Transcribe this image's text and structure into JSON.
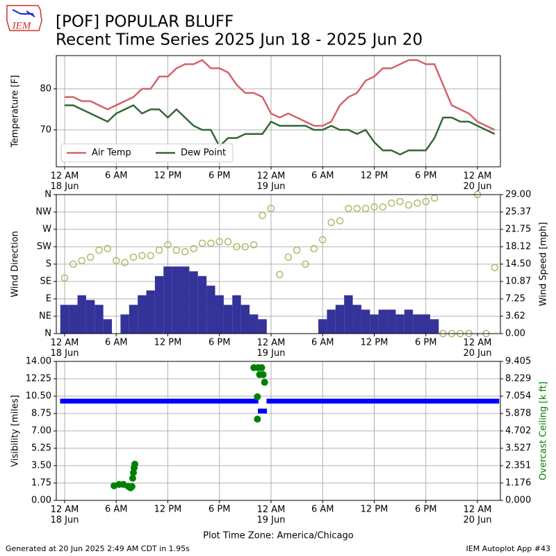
{
  "header": {
    "logo": "IEM",
    "title": "[POF] POPULAR BLUFF",
    "subtitle": "Recent Time Series 2025 Jun 18 - 2025 Jun 20"
  },
  "footer": {
    "left": "Generated at 20 Jun 2025 2:49 AM CDT in 1.95s",
    "right": "IEM Autoplot App #43"
  },
  "chart_data": [
    {
      "type": "combo",
      "ylabel": "Temperature [F]",
      "grid": true,
      "legend": "lower left",
      "xlim": [
        "2025-06-17T23:02",
        "2025-06-20T02:40"
      ],
      "xticks": [
        {
          "value": "2025-06-18T00:00",
          "label": "12 AM\n18 Jun"
        },
        {
          "value": "2025-06-18T06:00",
          "label": "6 AM"
        },
        {
          "value": "2025-06-18T12:00",
          "label": "12 PM"
        },
        {
          "value": "2025-06-18T18:00",
          "label": "6 PM"
        },
        {
          "value": "2025-06-19T00:00",
          "label": "12 AM\n19 Jun"
        },
        {
          "value": "2025-06-19T06:00",
          "label": "6 AM"
        },
        {
          "value": "2025-06-19T12:00",
          "label": "12 PM"
        },
        {
          "value": "2025-06-19T18:00",
          "label": "6 PM"
        },
        {
          "value": "2025-06-20T00:00",
          "label": "12 AM\n20 Jun"
        }
      ],
      "ylim": [
        61,
        88.1
      ],
      "yticks": [
        70,
        80
      ],
      "x": [
        "2025-06-18T00:00",
        "2025-06-18T01:00",
        "2025-06-18T02:00",
        "2025-06-18T03:00",
        "2025-06-18T04:00",
        "2025-06-18T05:00",
        "2025-06-18T06:00",
        "2025-06-18T07:00",
        "2025-06-18T08:00",
        "2025-06-18T09:00",
        "2025-06-18T10:00",
        "2025-06-18T11:00",
        "2025-06-18T12:00",
        "2025-06-18T13:00",
        "2025-06-18T14:00",
        "2025-06-18T15:00",
        "2025-06-18T16:00",
        "2025-06-18T17:00",
        "2025-06-18T18:00",
        "2025-06-18T19:00",
        "2025-06-18T20:00",
        "2025-06-18T21:00",
        "2025-06-18T22:00",
        "2025-06-18T23:00",
        "2025-06-19T00:00",
        "2025-06-19T01:00",
        "2025-06-19T02:00",
        "2025-06-19T03:00",
        "2025-06-19T04:00",
        "2025-06-19T05:00",
        "2025-06-19T06:00",
        "2025-06-19T07:00",
        "2025-06-19T08:00",
        "2025-06-19T09:00",
        "2025-06-19T10:00",
        "2025-06-19T11:00",
        "2025-06-19T12:00",
        "2025-06-19T13:00",
        "2025-06-19T14:00",
        "2025-06-19T15:00",
        "2025-06-19T16:00",
        "2025-06-19T17:00",
        "2025-06-19T18:00",
        "2025-06-19T19:00",
        "2025-06-19T20:00",
        "2025-06-19T21:00",
        "2025-06-19T22:00",
        "2025-06-19T23:00",
        "2025-06-20T00:00",
        "2025-06-20T01:00",
        "2025-06-20T02:00"
      ],
      "series": [
        {
          "name": "Air Temp",
          "color": "#d6616b",
          "kind": "line",
          "values": [
            78,
            78,
            77,
            77,
            76,
            75,
            76,
            77,
            78,
            80,
            80,
            83,
            83,
            85,
            86,
            86,
            87,
            85,
            85,
            84,
            81,
            79,
            79,
            78,
            74,
            73,
            74,
            73,
            72,
            71,
            71,
            72,
            76,
            78,
            79,
            82,
            83,
            85,
            85,
            86,
            87,
            87,
            86,
            86,
            81,
            76,
            75,
            74,
            72,
            71,
            70
          ]
        },
        {
          "name": "Dew Point",
          "color": "#336633",
          "kind": "line",
          "values": [
            76,
            76,
            75,
            74,
            73,
            72,
            74,
            75,
            76,
            74,
            75,
            75,
            73,
            75,
            73,
            71,
            70,
            70,
            66,
            68,
            68,
            69,
            69,
            69,
            72,
            71,
            71,
            71,
            71,
            70,
            70,
            71,
            70,
            70,
            69,
            70,
            67,
            65,
            65,
            64,
            65,
            65,
            65,
            68,
            73,
            73,
            72,
            72,
            71,
            70,
            69
          ]
        }
      ]
    },
    {
      "type": "combo",
      "ylabel": "Wind Direction",
      "y2label": "Wind Speed [mph]",
      "grid": true,
      "xlim": [
        "2025-06-17T23:02",
        "2025-06-20T02:40"
      ],
      "xticks": [
        {
          "value": "2025-06-18T00:00",
          "label": "12 AM\n18 Jun"
        },
        {
          "value": "2025-06-18T06:00",
          "label": "6 AM"
        },
        {
          "value": "2025-06-18T12:00",
          "label": "12 PM"
        },
        {
          "value": "2025-06-18T18:00",
          "label": "6 PM"
        },
        {
          "value": "2025-06-19T00:00",
          "label": "12 AM\n19 Jun"
        },
        {
          "value": "2025-06-19T06:00",
          "label": "6 AM"
        },
        {
          "value": "2025-06-19T12:00",
          "label": "12 PM"
        },
        {
          "value": "2025-06-19T18:00",
          "label": "6 PM"
        },
        {
          "value": "2025-06-20T00:00",
          "label": "12 AM\n20 Jun"
        }
      ],
      "ylim": [
        0,
        360
      ],
      "yticks": [
        {
          "value": 0,
          "label": "N"
        },
        {
          "value": 45,
          "label": "NE"
        },
        {
          "value": 90,
          "label": "E"
        },
        {
          "value": 135,
          "label": "SE"
        },
        {
          "value": 180,
          "label": "S"
        },
        {
          "value": 225,
          "label": "SW"
        },
        {
          "value": 270,
          "label": "W"
        },
        {
          "value": 315,
          "label": "NW"
        },
        {
          "value": 360,
          "label": "N"
        }
      ],
      "y2lim": [
        0,
        29
      ],
      "y2ticks": [
        {
          "value": 0,
          "label": "0.00"
        },
        {
          "value": 3.625,
          "label": "3.62"
        },
        {
          "value": 7.25,
          "label": "7.25"
        },
        {
          "value": 10.875,
          "label": "10.87"
        },
        {
          "value": 14.5,
          "label": "14.50"
        },
        {
          "value": 18.125,
          "label": "18.12"
        },
        {
          "value": 21.75,
          "label": "21.75"
        },
        {
          "value": 25.375,
          "label": "25.37"
        },
        {
          "value": 29,
          "label": "29.00"
        }
      ],
      "x": [
        "2025-06-18T00:00",
        "2025-06-18T01:00",
        "2025-06-18T02:00",
        "2025-06-18T03:00",
        "2025-06-18T04:00",
        "2025-06-18T05:00",
        "2025-06-18T06:00",
        "2025-06-18T07:00",
        "2025-06-18T08:00",
        "2025-06-18T09:00",
        "2025-06-18T10:00",
        "2025-06-18T11:00",
        "2025-06-18T12:00",
        "2025-06-18T13:00",
        "2025-06-18T14:00",
        "2025-06-18T15:00",
        "2025-06-18T16:00",
        "2025-06-18T17:00",
        "2025-06-18T18:00",
        "2025-06-18T19:00",
        "2025-06-18T20:00",
        "2025-06-18T21:00",
        "2025-06-18T22:00",
        "2025-06-18T23:00",
        "2025-06-19T00:00",
        "2025-06-19T01:00",
        "2025-06-19T02:00",
        "2025-06-19T03:00",
        "2025-06-19T04:00",
        "2025-06-19T05:00",
        "2025-06-19T06:00",
        "2025-06-19T07:00",
        "2025-06-19T08:00",
        "2025-06-19T09:00",
        "2025-06-19T10:00",
        "2025-06-19T11:00",
        "2025-06-19T12:00",
        "2025-06-19T13:00",
        "2025-06-19T14:00",
        "2025-06-19T15:00",
        "2025-06-19T16:00",
        "2025-06-19T17:00",
        "2025-06-19T18:00",
        "2025-06-19T19:00",
        "2025-06-19T20:00",
        "2025-06-19T21:00",
        "2025-06-19T22:00",
        "2025-06-19T23:00",
        "2025-06-20T00:00",
        "2025-06-20T01:00",
        "2025-06-20T02:00"
      ],
      "series": [
        {
          "color": "#333399",
          "kind": "bar",
          "axis": "y2",
          "values": [
            6,
            6,
            8,
            7,
            6,
            3,
            0,
            4,
            6,
            8,
            9,
            12,
            14,
            14,
            14,
            13,
            12,
            10,
            8,
            6,
            8,
            6,
            4,
            3,
            0,
            0,
            0,
            0,
            0,
            0,
            3,
            5,
            6,
            8,
            6,
            5,
            4,
            5,
            5,
            4,
            5,
            4,
            4,
            3,
            0,
            0,
            0,
            0,
            0,
            0,
            0
          ]
        },
        {
          "color": "#b5b56a",
          "kind": "hollow-circle",
          "values": [
            144,
            180,
            189,
            198,
            216,
            220,
            189,
            184,
            198,
            202,
            202,
            216,
            230,
            216,
            212,
            220,
            234,
            234,
            238,
            238,
            225,
            225,
            230,
            306,
            324,
            153,
            198,
            216,
            180,
            220,
            243,
            288,
            292,
            324,
            324,
            324,
            328,
            328,
            338,
            342,
            333,
            338,
            342,
            351,
            0,
            0,
            0,
            0,
            360,
            0,
            171
          ]
        }
      ]
    },
    {
      "type": "combo",
      "ylabel": "Visibility [miles]",
      "y2label": "Overcast Ceiling [k ft]",
      "y2label_color": "#008000",
      "xlabel": "Plot Time Zone: America/Chicago",
      "grid": true,
      "xlim": [
        "2025-06-17T23:02",
        "2025-06-20T02:40"
      ],
      "xticks": [
        {
          "value": "2025-06-18T00:00",
          "label": "12 AM\n18 Jun"
        },
        {
          "value": "2025-06-18T06:00",
          "label": "6 AM"
        },
        {
          "value": "2025-06-18T12:00",
          "label": "12 PM"
        },
        {
          "value": "2025-06-18T18:00",
          "label": "6 PM"
        },
        {
          "value": "2025-06-19T00:00",
          "label": "12 AM\n19 Jun"
        },
        {
          "value": "2025-06-19T06:00",
          "label": "6 AM"
        },
        {
          "value": "2025-06-19T12:00",
          "label": "12 PM"
        },
        {
          "value": "2025-06-19T18:00",
          "label": "6 PM"
        },
        {
          "value": "2025-06-20T00:00",
          "label": "12 AM\n20 Jun"
        }
      ],
      "ylim": [
        0,
        14
      ],
      "yticks": [
        {
          "value": 0,
          "label": "0.00"
        },
        1.75,
        {
          "value": 3.5,
          "label": "3.50"
        },
        5.25,
        {
          "value": 7,
          "label": "7.00"
        },
        8.75,
        {
          "value": 10.5,
          "label": "10.50"
        },
        12.25,
        {
          "value": 14,
          "label": "14.00"
        }
      ],
      "y2lim": [
        0,
        9.405
      ],
      "y2ticks": [
        {
          "value": 0,
          "label": "0.000"
        },
        {
          "value": 1.175625,
          "label": "1.176"
        },
        {
          "value": 2.35125,
          "label": "2.351"
        },
        {
          "value": 3.526875,
          "label": "3.527"
        },
        {
          "value": 4.7025,
          "label": "4.702"
        },
        {
          "value": 5.878125,
          "label": "5.878"
        },
        {
          "value": 7.05375,
          "label": "7.054"
        },
        {
          "value": 8.229375,
          "label": "8.229"
        },
        {
          "value": 9.405,
          "label": "9.405"
        }
      ],
      "x": [
        "2025-06-18T00:00",
        "2025-06-18T01:00",
        "2025-06-18T02:00",
        "2025-06-18T03:00",
        "2025-06-18T04:00",
        "2025-06-18T05:00",
        "2025-06-18T06:00",
        "2025-06-18T07:00",
        "2025-06-18T08:00",
        "2025-06-18T09:00",
        "2025-06-18T10:00",
        "2025-06-18T11:00",
        "2025-06-18T12:00",
        "2025-06-18T13:00",
        "2025-06-18T14:00",
        "2025-06-18T15:00",
        "2025-06-18T16:00",
        "2025-06-18T17:00",
        "2025-06-18T18:00",
        "2025-06-18T19:00",
        "2025-06-18T20:00",
        "2025-06-18T21:00",
        "2025-06-18T22:00",
        "2025-06-18T23:00",
        "2025-06-19T00:00",
        "2025-06-19T01:00",
        "2025-06-19T02:00",
        "2025-06-19T03:00",
        "2025-06-19T04:00",
        "2025-06-19T05:00",
        "2025-06-19T06:00",
        "2025-06-19T07:00",
        "2025-06-19T08:00",
        "2025-06-19T09:00",
        "2025-06-19T10:00",
        "2025-06-19T11:00",
        "2025-06-19T12:00",
        "2025-06-19T13:00",
        "2025-06-19T14:00",
        "2025-06-19T15:00",
        "2025-06-19T16:00",
        "2025-06-19T17:00",
        "2025-06-19T18:00",
        "2025-06-19T19:00",
        "2025-06-19T20:00",
        "2025-06-19T21:00",
        "2025-06-19T22:00",
        "2025-06-19T23:00",
        "2025-06-20T00:00",
        "2025-06-20T01:00",
        "2025-06-20T02:00"
      ],
      "series": [
        {
          "color": "#0000ff",
          "kind": "dash",
          "values": [
            10,
            10,
            10,
            10,
            10,
            10,
            10,
            10,
            10,
            10,
            10,
            10,
            10,
            10,
            10,
            10,
            10,
            10,
            10,
            10,
            10,
            10,
            10,
            9,
            10,
            10,
            10,
            10,
            10,
            10,
            10,
            10,
            10,
            10,
            10,
            10,
            10,
            10,
            10,
            10,
            10,
            10,
            10,
            10,
            10,
            10,
            10,
            10,
            10,
            10,
            10
          ]
        },
        {
          "color": "#008000",
          "kind": "dot",
          "axis": "y2",
          "x": [
            "2025-06-18T05:45",
            "2025-06-18T06:20",
            "2025-06-18T06:50",
            "2025-06-18T07:25",
            "2025-06-18T07:40",
            "2025-06-18T07:50",
            "2025-06-18T07:55",
            "2025-06-18T08:00",
            "2025-06-18T08:05",
            "2025-06-18T08:10",
            "2025-06-18T22:00",
            "2025-06-18T22:30",
            "2025-06-18T22:55",
            "2025-06-18T22:40",
            "2025-06-18T23:05",
            "2025-06-18T23:15",
            "2025-06-18T22:25",
            "2025-06-18T22:25"
          ],
          "values": [
            0.99,
            1.08,
            1.08,
            0.94,
            0.85,
            0.94,
            1.5,
            1.88,
            2.21,
            2.45,
            8.98,
            8.98,
            8.98,
            8.51,
            8.51,
            7.99,
            7.01,
            5.5
          ]
        }
      ]
    }
  ]
}
